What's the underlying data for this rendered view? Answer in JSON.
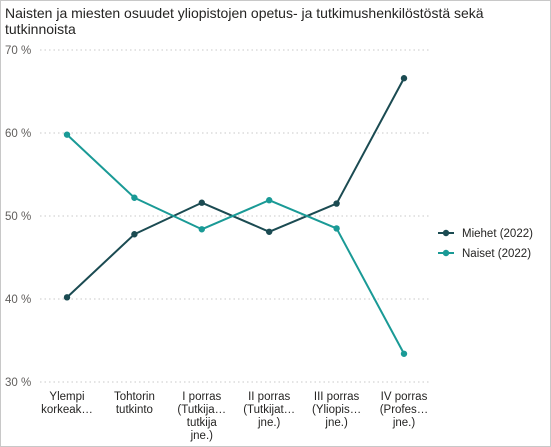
{
  "title": "Naisten ja miesten osuudet yliopistojen opetus- ja tutkimushenkilöstöstä sekä tutkinnoista",
  "colors": {
    "miehet": "#1b4b52",
    "naiset": "#1a9a96",
    "grid": "#c8c8c8"
  },
  "chart_data": {
    "type": "line",
    "title": "Naisten ja miesten osuudet yliopistojen opetus- ja tutkimushenkilöstöstä sekä tutkinnoista",
    "categories": [
      [
        "Ylempi",
        "korkeak…"
      ],
      [
        "Tohtorin",
        "tutkinto"
      ],
      [
        "I porras",
        "(Tutkija…",
        "tutkija",
        "jne.)"
      ],
      [
        "II porras",
        "(Tutkijat…",
        "jne.)"
      ],
      [
        "III porras",
        "(Yliopis…",
        "jne.)"
      ],
      [
        "IV porras",
        "(Profes…",
        "jne.)"
      ]
    ],
    "series": [
      {
        "name": "Miehet (2022)",
        "values": [
          40.2,
          47.8,
          51.6,
          48.1,
          51.5,
          66.6
        ]
      },
      {
        "name": "Naiset (2022)",
        "values": [
          59.8,
          52.2,
          48.4,
          51.9,
          48.5,
          33.4
        ]
      }
    ],
    "y_ticks": [
      "70 %",
      "60 %",
      "50 %",
      "40 %",
      "30 %"
    ],
    "y_tick_values": [
      70,
      60,
      50,
      40,
      30
    ],
    "ylim": [
      30,
      70
    ],
    "grid": true,
    "legend_position": "right",
    "xlabel": "",
    "ylabel": ""
  }
}
